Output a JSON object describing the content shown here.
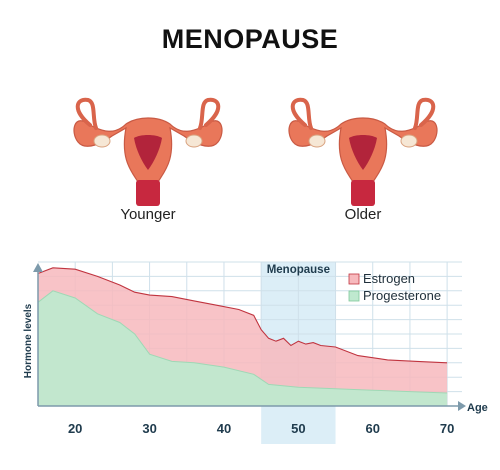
{
  "title": "MENOPAUSE",
  "illustrations": {
    "younger_label": "Younger",
    "older_label": "Older"
  },
  "colors": {
    "estrogen": "#f7b9bd",
    "estrogen_line": "#c0343f",
    "progesterone": "#bfe9cf",
    "menopause_band": "#dceef7",
    "grid": "#cfe0ea",
    "axis": "#7d9aab",
    "uterus": "#e9775a",
    "uterus_dark": "#b2243b"
  },
  "chart_data": {
    "type": "area",
    "title": "",
    "xlabel": "Age",
    "ylabel": "Hormone levels",
    "xlim": [
      15,
      72
    ],
    "ylim": [
      0,
      100
    ],
    "x_ticks": [
      20,
      30,
      40,
      50,
      60,
      70
    ],
    "grid": true,
    "legend_position": "top-right",
    "annotation": {
      "label": "Menopause",
      "x_range": [
        45,
        55
      ]
    },
    "series": [
      {
        "name": "Estrogen",
        "x": [
          15,
          17,
          20,
          23,
          26,
          28,
          30,
          33,
          36,
          39,
          42,
          44,
          45,
          46,
          47,
          48,
          49,
          50,
          51,
          52,
          53,
          55,
          58,
          62,
          66,
          70
        ],
        "values": [
          92,
          96,
          95,
          90,
          84,
          79,
          77,
          76,
          73,
          70,
          67,
          63,
          53,
          47,
          45,
          47,
          42,
          45,
          43,
          44,
          42,
          41,
          35,
          32,
          31,
          30
        ]
      },
      {
        "name": "Progesterone",
        "x": [
          15,
          17,
          20,
          23,
          26,
          28,
          30,
          33,
          36,
          40,
          44,
          46,
          50,
          55,
          60,
          65,
          70
        ],
        "values": [
          72,
          80,
          75,
          64,
          58,
          50,
          36,
          31,
          30,
          27,
          22,
          15,
          13,
          12,
          11,
          10,
          9
        ]
      }
    ]
  }
}
